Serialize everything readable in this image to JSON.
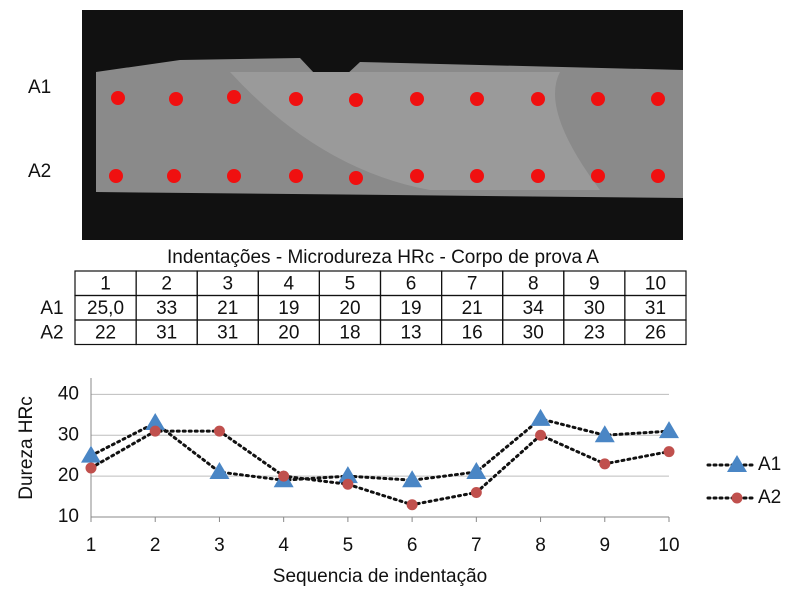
{
  "photo": {
    "labels": [
      "A1",
      "A2"
    ]
  },
  "table": {
    "title": "Indentações - Microdureza HRc - Corpo de prova A",
    "header": [
      "1",
      "2",
      "3",
      "4",
      "5",
      "6",
      "7",
      "8",
      "9",
      "10"
    ],
    "rows": [
      [
        "A1",
        "25,0",
        "33",
        "21",
        "19",
        "20",
        "19",
        "21",
        "34",
        "30",
        "31"
      ],
      [
        "A2",
        "22",
        "31",
        "31",
        "20",
        "18",
        "13",
        "16",
        "30",
        "23",
        "26"
      ]
    ]
  },
  "chart_data": {
    "type": "line",
    "x_label": "Sequencia de indentação",
    "y_label": "Dureza HRc",
    "categories": [
      "1",
      "2",
      "3",
      "4",
      "5",
      "6",
      "7",
      "8",
      "9",
      "10"
    ],
    "series": [
      {
        "name": "A1",
        "color": "#4a86c5",
        "marker": "triangle",
        "values": [
          25,
          33,
          21,
          19,
          20,
          19,
          21,
          34,
          30,
          31
        ]
      },
      {
        "name": "A2",
        "color": "#c0504d",
        "marker": "circle",
        "values": [
          22,
          31,
          31,
          20,
          18,
          13,
          16,
          30,
          23,
          26
        ]
      }
    ],
    "ylim": [
      10,
      44
    ],
    "yticks": [
      10,
      20,
      30,
      40
    ],
    "grid": true,
    "legend": "right"
  }
}
